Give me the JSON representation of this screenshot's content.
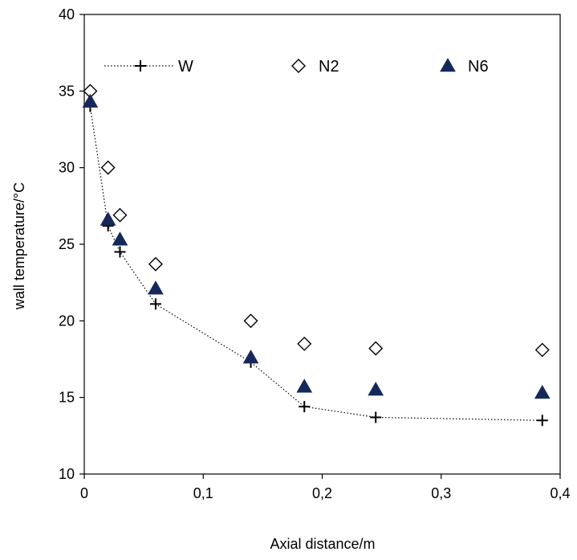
{
  "chart_data": {
    "type": "scatter",
    "title": "",
    "xlabel": "Axial distance/m",
    "ylabel": "wall temperature/°C",
    "xlim": [
      0,
      0.4
    ],
    "ylim": [
      10,
      40
    ],
    "xticks": [
      "0",
      "0,1",
      "0,2",
      "0,3",
      "0,4"
    ],
    "xtick_values": [
      0,
      0.1,
      0.2,
      0.3,
      0.4
    ],
    "yticks": [
      "10",
      "15",
      "20",
      "25",
      "30",
      "35",
      "40"
    ],
    "ytick_values": [
      10,
      15,
      20,
      25,
      30,
      35,
      40
    ],
    "grid": false,
    "legend_position": "top",
    "series": [
      {
        "name": "W",
        "marker": "plus",
        "line": "dotted",
        "color": "#000000",
        "x": [
          0.005,
          0.02,
          0.03,
          0.06,
          0.14,
          0.185,
          0.245,
          0.385
        ],
        "y": [
          34.0,
          26.2,
          24.5,
          21.1,
          17.3,
          14.4,
          13.7,
          13.5
        ]
      },
      {
        "name": "N2",
        "marker": "diamond-open",
        "line": "none",
        "color": "#000000",
        "x": [
          0.005,
          0.02,
          0.03,
          0.06,
          0.14,
          0.185,
          0.245,
          0.385
        ],
        "y": [
          35.0,
          30.0,
          26.9,
          23.7,
          20.0,
          18.5,
          18.2,
          18.1
        ]
      },
      {
        "name": "N6",
        "marker": "triangle-filled",
        "line": "none",
        "color": "#14285a",
        "x": [
          0.005,
          0.02,
          0.03,
          0.06,
          0.14,
          0.185,
          0.245,
          0.385
        ],
        "y": [
          34.3,
          26.6,
          25.3,
          22.1,
          17.6,
          15.7,
          15.5,
          15.3
        ]
      }
    ]
  }
}
